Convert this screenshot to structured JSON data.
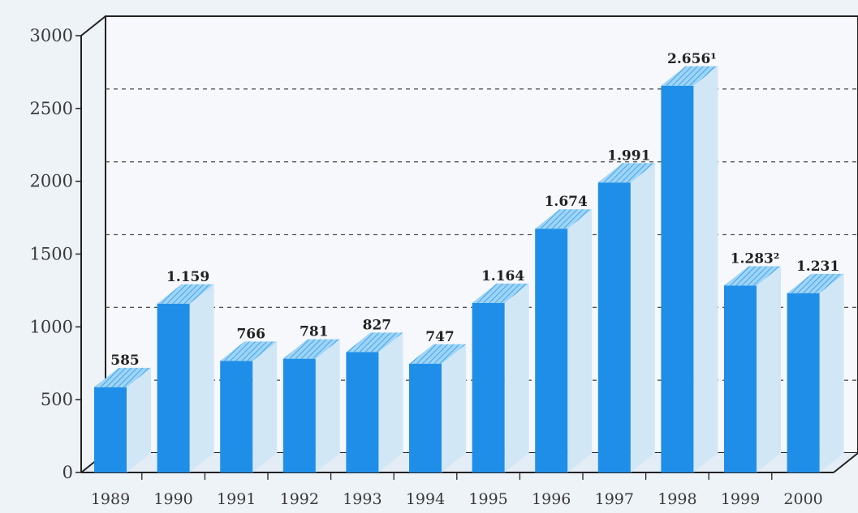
{
  "chart_data": {
    "type": "bar",
    "title": "",
    "xlabel": "",
    "ylabel": "",
    "ylim": [
      0,
      3000
    ],
    "yticks": [
      "0",
      "500",
      "1000",
      "1500",
      "2000",
      "2500",
      "3000"
    ],
    "grid": true,
    "categories": [
      "1989",
      "1990",
      "1991",
      "1992",
      "1993",
      "1994",
      "1995",
      "1996",
      "1997",
      "1998",
      "1999",
      "2000"
    ],
    "values": [
      585,
      1159,
      766,
      781,
      827,
      747,
      1164,
      1674,
      1991,
      2656,
      1283,
      1231
    ],
    "labels": [
      "585",
      "1.159",
      "766",
      "781",
      "827",
      "747",
      "1.164",
      "1.674",
      "1.991",
      "2.656¹",
      "1.283²",
      "1.231"
    ],
    "colors": {
      "bar": "#1f8ee8",
      "bar_side": "#d2e7f6",
      "bar_top": "#7fc4f2",
      "grid": "#555555",
      "plot_bg": "#f6f8fb"
    }
  }
}
